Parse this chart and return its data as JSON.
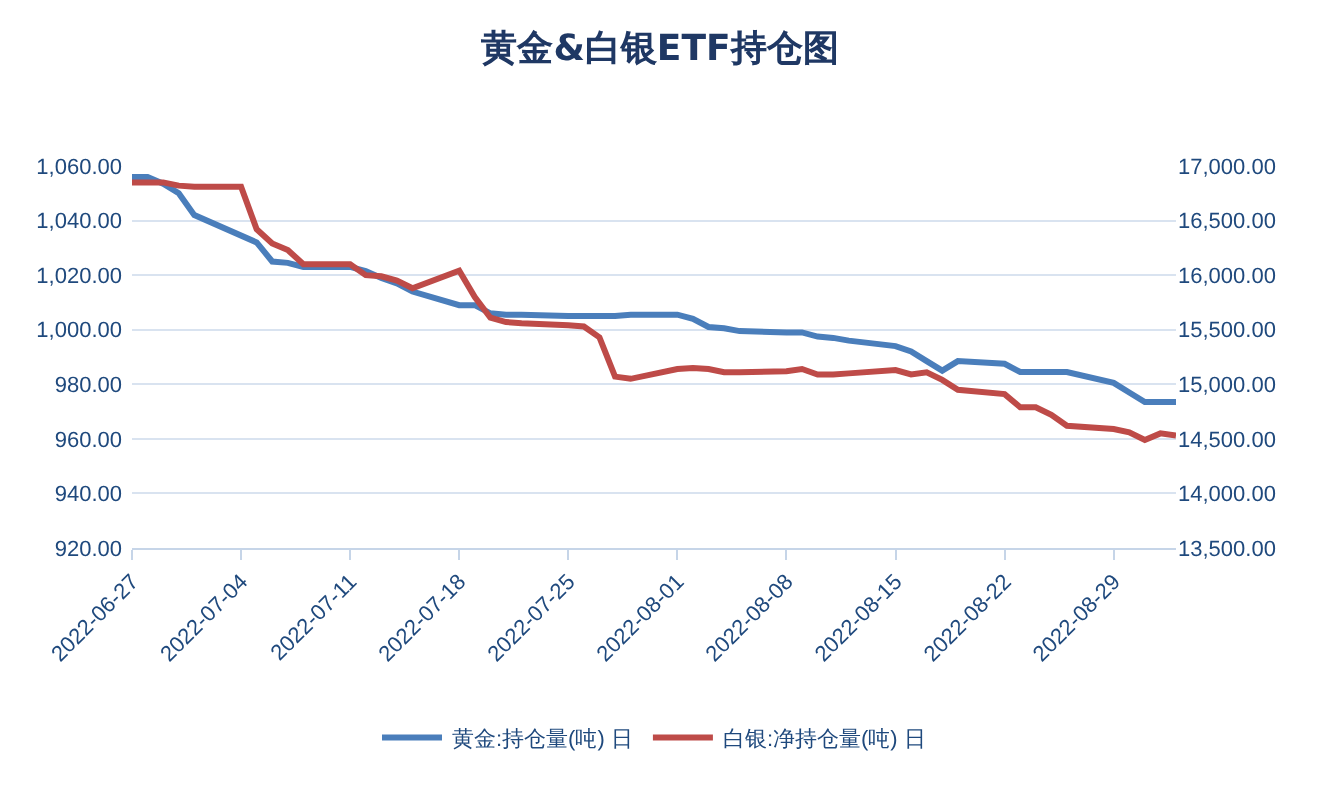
{
  "chart_data": {
    "type": "line",
    "title": "黄金&白银ETF持仓图",
    "series": [
      {
        "name": "黄金:持仓量(吨) 日",
        "color": "#4a7ebb",
        "x": [
          "2022-06-27",
          "2022-06-28",
          "2022-06-29",
          "2022-06-30",
          "2022-07-01",
          "2022-07-05",
          "2022-07-06",
          "2022-07-07",
          "2022-07-08",
          "2022-07-11",
          "2022-07-12",
          "2022-07-13",
          "2022-07-14",
          "2022-07-15",
          "2022-07-18",
          "2022-07-19",
          "2022-07-20",
          "2022-07-21",
          "2022-07-22",
          "2022-07-25",
          "2022-07-26",
          "2022-07-27",
          "2022-07-28",
          "2022-07-29",
          "2022-08-01",
          "2022-08-02",
          "2022-08-03",
          "2022-08-04",
          "2022-08-05",
          "2022-08-08",
          "2022-08-09",
          "2022-08-10",
          "2022-08-11",
          "2022-08-12",
          "2022-08-15",
          "2022-08-16",
          "2022-08-17",
          "2022-08-18",
          "2022-08-19",
          "2022-08-22",
          "2022-08-23",
          "2022-08-24",
          "2022-08-25",
          "2022-08-26",
          "2022-08-29",
          "2022-08-30",
          "2022-08-31",
          "2022-09-01",
          "2022-09-02"
        ],
        "values": [
          1056,
          1056,
          1053.5,
          1050,
          1042,
          1032,
          1025,
          1024.5,
          1023,
          1023,
          1021.5,
          1019,
          1017,
          1014,
          1009,
          1009,
          1006,
          1005.5,
          1005.5,
          1005,
          1005,
          1005,
          1005,
          1005.5,
          1005.5,
          1004,
          1001,
          1000.5,
          999.5,
          999,
          999,
          997.5,
          997,
          996,
          994,
          992,
          988.5,
          985,
          988.5,
          987.5,
          984.5,
          984.5,
          984.5,
          984.5,
          980.5,
          977,
          973.5,
          973.5,
          973.5
        ]
      },
      {
        "name": "白银:净持仓量(吨) 日",
        "color": "#be4b48",
        "axis": "y2",
        "x": [
          "2022-06-27",
          "2022-06-28",
          "2022-06-29",
          "2022-06-30",
          "2022-07-01",
          "2022-07-04",
          "2022-07-05",
          "2022-07-06",
          "2022-07-07",
          "2022-07-08",
          "2022-07-11",
          "2022-07-12",
          "2022-07-13",
          "2022-07-14",
          "2022-07-15",
          "2022-07-18",
          "2022-07-19",
          "2022-07-20",
          "2022-07-21",
          "2022-07-22",
          "2022-07-25",
          "2022-07-26",
          "2022-07-27",
          "2022-07-28",
          "2022-07-29",
          "2022-08-01",
          "2022-08-02",
          "2022-08-03",
          "2022-08-04",
          "2022-08-05",
          "2022-08-08",
          "2022-08-09",
          "2022-08-10",
          "2022-08-11",
          "2022-08-12",
          "2022-08-15",
          "2022-08-16",
          "2022-08-17",
          "2022-08-18",
          "2022-08-19",
          "2022-08-22",
          "2022-08-23",
          "2022-08-24",
          "2022-08-25",
          "2022-08-26",
          "2022-08-29",
          "2022-08-30",
          "2022-08-31",
          "2022-09-01",
          "2022-09-02"
        ],
        "values": [
          16850,
          16850,
          16850,
          16820,
          16810,
          16810,
          16420,
          16290,
          16230,
          16100,
          16100,
          16000,
          15990,
          15950,
          15880,
          16040,
          15800,
          15610,
          15570,
          15560,
          15540,
          15530,
          15430,
          15070,
          15050,
          15140,
          15150,
          15140,
          15110,
          15110,
          15120,
          15140,
          15090,
          15090,
          15100,
          15130,
          15090,
          15110,
          15040,
          14950,
          14910,
          14790,
          14790,
          14720,
          14620,
          14590,
          14560,
          14490,
          14550,
          14530
        ]
      }
    ],
    "xlim": [
      "2022-06-27",
      "2022-09-02"
    ],
    "xticks": [
      "2022-06-27",
      "2022-07-04",
      "2022-07-11",
      "2022-07-18",
      "2022-07-25",
      "2022-08-01",
      "2022-08-08",
      "2022-08-15",
      "2022-08-22",
      "2022-08-29"
    ],
    "ylim": [
      920,
      1060
    ],
    "yticks": [
      {
        "value": 920,
        "label": "920.00"
      },
      {
        "value": 940,
        "label": "940.00"
      },
      {
        "value": 960,
        "label": "960.00"
      },
      {
        "value": 980,
        "label": "980.00"
      },
      {
        "value": 1000,
        "label": "1,000.00"
      },
      {
        "value": 1020,
        "label": "1,020.00"
      },
      {
        "value": 1040,
        "label": "1,040.00"
      },
      {
        "value": 1060,
        "label": "1,060.00"
      }
    ],
    "y2lim": [
      13500,
      17000
    ],
    "y2ticks": [
      {
        "value": 13500,
        "label": "13,500.00"
      },
      {
        "value": 14000,
        "label": "14,000.00"
      },
      {
        "value": 14500,
        "label": "14,500.00"
      },
      {
        "value": 15000,
        "label": "15,000.00"
      },
      {
        "value": 15500,
        "label": "15,500.00"
      },
      {
        "value": 16000,
        "label": "16,000.00"
      },
      {
        "value": 16500,
        "label": "16,500.00"
      },
      {
        "value": 17000,
        "label": "17,000.00"
      }
    ],
    "grid": "y",
    "legend": "bottom",
    "marker": "none",
    "line_style": "solid"
  }
}
